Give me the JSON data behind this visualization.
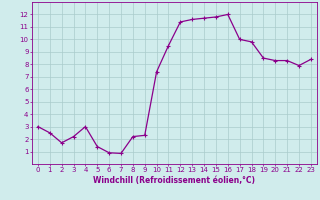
{
  "x": [
    0,
    1,
    2,
    3,
    4,
    5,
    6,
    7,
    8,
    9,
    10,
    11,
    12,
    13,
    14,
    15,
    16,
    17,
    18,
    19,
    20,
    21,
    22,
    23
  ],
  "y": [
    3.0,
    2.5,
    1.7,
    2.2,
    3.0,
    1.4,
    0.9,
    0.85,
    2.2,
    2.3,
    7.4,
    9.5,
    11.4,
    11.6,
    11.7,
    11.8,
    12.0,
    10.0,
    9.8,
    8.5,
    8.3,
    8.3,
    7.9,
    8.4
  ],
  "line_color": "#8B008B",
  "marker": "+",
  "markersize": 3,
  "linewidth": 0.9,
  "xlabel": "Windchill (Refroidissement éolien,°C)",
  "xlabel_fontsize": 5.5,
  "xlabel_color": "#8B008B",
  "ylabel": "",
  "xlim": [
    -0.5,
    23.5
  ],
  "ylim": [
    0,
    13
  ],
  "yticks": [
    1,
    2,
    3,
    4,
    5,
    6,
    7,
    8,
    9,
    10,
    11,
    12
  ],
  "xticks": [
    0,
    1,
    2,
    3,
    4,
    5,
    6,
    7,
    8,
    9,
    10,
    11,
    12,
    13,
    14,
    15,
    16,
    17,
    18,
    19,
    20,
    21,
    22,
    23
  ],
  "tick_fontsize": 5,
  "tick_color": "#8B008B",
  "grid_color": "#aacccc",
  "background_color": "#d0ecec",
  "spine_color": "#8B008B"
}
